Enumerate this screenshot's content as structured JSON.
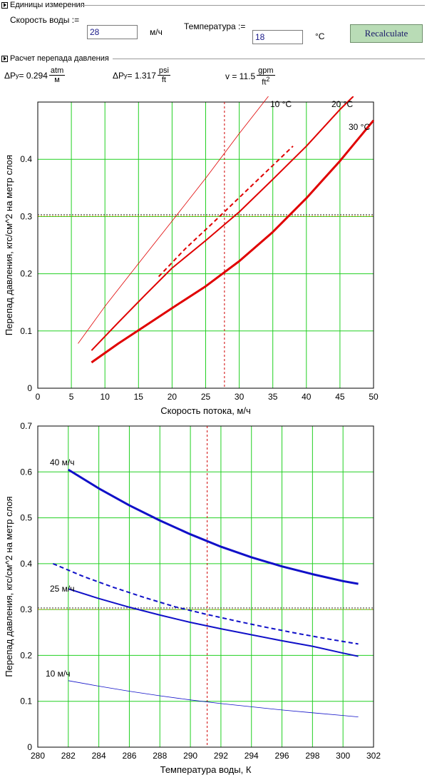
{
  "units_section": {
    "title": "Единицы измерения",
    "speed_label": "Скорость воды :=",
    "speed_value": "28",
    "speed_unit": "м/ч",
    "temp_label": "Температура :=",
    "temp_value": "18",
    "temp_unit": "°C",
    "recalc_label": "Recalculate"
  },
  "pressure_section": {
    "title": "Расчет перепада давления",
    "f1_prefix": "ΔP",
    "f1_sub": "y",
    "f1_value": " = 0.294 ",
    "f1_num": "atm",
    "f1_den": "м",
    "f2_prefix": "ΔP",
    "f2_sub": "y",
    "f2_value": " = 1.317 ",
    "f2_num": "psi",
    "f2_den": "ft",
    "f3_prefix": "v = 11.5 ",
    "f3_num": "gpm",
    "f3_den": "ft",
    "f3_den_sup": "2"
  },
  "chart_data": [
    {
      "type": "line",
      "xlabel": "Скорость потока, м/ч",
      "ylabel": "Перепад давления, кгс/см^2 на метр слоя",
      "xlim": [
        0,
        50
      ],
      "ylim": [
        0,
        0.5
      ],
      "xticks": [
        0,
        5,
        10,
        15,
        20,
        25,
        30,
        35,
        40,
        45,
        50
      ],
      "yticks": [
        0,
        0.1,
        0.2,
        0.3,
        0.4
      ],
      "grid": true,
      "vline": 27.8,
      "hline": 0.302,
      "series": [
        {
          "name": "10 °C",
          "color": "#e00000",
          "width": 0.8,
          "dash": false,
          "x": [
            6,
            10,
            15,
            20,
            25,
            30,
            35
          ],
          "y": [
            0.078,
            0.143,
            0.218,
            0.292,
            0.367,
            0.445,
            0.52
          ]
        },
        {
          "name": "20 °C",
          "color": "#e00000",
          "width": 2,
          "dash": false,
          "x": [
            8,
            12,
            16,
            20,
            25,
            30,
            35,
            40,
            45,
            47
          ],
          "y": [
            0.066,
            0.115,
            0.163,
            0.21,
            0.258,
            0.308,
            0.365,
            0.423,
            0.487,
            0.51
          ]
        },
        {
          "name": "",
          "color": "#e00000",
          "width": 2,
          "dash": true,
          "x": [
            18,
            22,
            26,
            30,
            34,
            38
          ],
          "y": [
            0.195,
            0.244,
            0.288,
            0.333,
            0.378,
            0.423
          ]
        },
        {
          "name": "30 °C",
          "color": "#e00000",
          "width": 3,
          "dash": false,
          "x": [
            8,
            12,
            16,
            20,
            25,
            30,
            35,
            40,
            45,
            50
          ],
          "y": [
            0.045,
            0.078,
            0.109,
            0.14,
            0.178,
            0.222,
            0.273,
            0.332,
            0.397,
            0.468
          ]
        }
      ]
    },
    {
      "type": "line",
      "xlabel": "Температура воды, К",
      "ylabel": "Перепад давления, кгс/см^2 на метр слоя",
      "xlim": [
        280,
        302
      ],
      "ylim": [
        0,
        0.7
      ],
      "xticks": [
        280,
        282,
        284,
        286,
        288,
        290,
        292,
        294,
        296,
        298,
        300,
        302
      ],
      "yticks": [
        0,
        0.1,
        0.2,
        0.3,
        0.4,
        0.5,
        0.6,
        0.7
      ],
      "grid": true,
      "vline": 291.1,
      "hline": 0.302,
      "series": [
        {
          "name": "40 м/ч",
          "color": "#1010c8",
          "width": 3,
          "dash": false,
          "x": [
            282,
            284,
            286,
            288,
            290,
            292,
            294,
            296,
            298,
            300,
            301
          ],
          "y": [
            0.605,
            0.564,
            0.527,
            0.494,
            0.464,
            0.437,
            0.414,
            0.394,
            0.377,
            0.362,
            0.356
          ]
        },
        {
          "name": "",
          "color": "#1010c8",
          "width": 2,
          "dash": true,
          "x": [
            281,
            283,
            285,
            287,
            289,
            291,
            293,
            295,
            297,
            299,
            301
          ],
          "y": [
            0.4,
            0.372,
            0.348,
            0.326,
            0.306,
            0.29,
            0.275,
            0.261,
            0.248,
            0.236,
            0.225
          ]
        },
        {
          "name": "25 м/ч",
          "color": "#1010c8",
          "width": 2,
          "dash": false,
          "x": [
            282,
            284,
            286,
            288,
            290,
            292,
            294,
            296,
            298,
            300,
            301
          ],
          "y": [
            0.345,
            0.324,
            0.305,
            0.288,
            0.272,
            0.258,
            0.245,
            0.232,
            0.22,
            0.205,
            0.198
          ]
        },
        {
          "name": "10 м/ч",
          "color": "#1010c8",
          "width": 0.8,
          "dash": false,
          "x": [
            282,
            284,
            286,
            288,
            290,
            292,
            294,
            296,
            298,
            300,
            301
          ],
          "y": [
            0.145,
            0.133,
            0.122,
            0.112,
            0.103,
            0.095,
            0.088,
            0.081,
            0.075,
            0.069,
            0.066
          ]
        }
      ]
    }
  ]
}
